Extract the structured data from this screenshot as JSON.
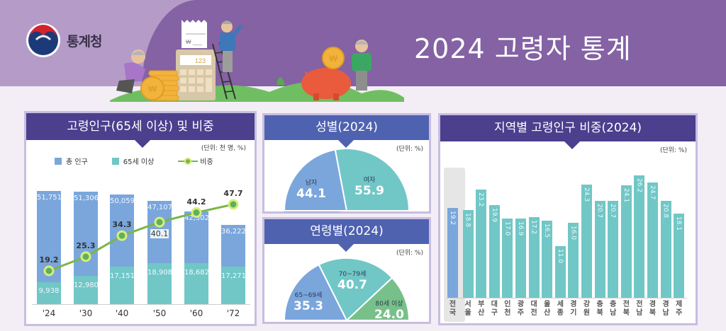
{
  "header": {
    "logo_text": "통계청",
    "title": "2024 고령자 통계",
    "illustration_text": {
      "receipt": "₩",
      "calculator": "123",
      "coin": "₩"
    }
  },
  "colors": {
    "banner_light": "#b59cc8",
    "banner_dark": "#8462a3",
    "panel_header_purple": "#4b3f8e",
    "panel_header_blue": "#4f62b0",
    "total_population": "#7aa6dc",
    "age65plus": "#70c7c6",
    "ratio_line": "#7ab648",
    "age80plus": "#78c08a",
    "national": "#7aa6dc"
  },
  "panels": {
    "population": {
      "title": "고령인구(65세 이상) 및 비중",
      "unit": "(단위: 천 명, %)",
      "legend": [
        "총 인구",
        "65세 이상",
        "비중"
      ]
    },
    "gender": {
      "title": "성별(2024)",
      "unit": "(단위: %)",
      "slices": [
        {
          "label": "남자",
          "value": "44.1"
        },
        {
          "label": "여자",
          "value": "55.9"
        }
      ]
    },
    "age": {
      "title": "연령별(2024)",
      "unit": "(단위: %)",
      "slices": [
        {
          "label": "65~69세",
          "value": "35.3"
        },
        {
          "label": "70~79세",
          "value": "40.7"
        },
        {
          "label": "80세 이상",
          "value": "24.0"
        }
      ]
    },
    "region": {
      "title": "지역별 고령인구 비중(2024)",
      "unit": "(단위: %)"
    }
  },
  "chart_data": [
    {
      "type": "bar",
      "title": "고령인구(65세 이상) 및 비중",
      "unit": "천 명, %",
      "categories": [
        "'24",
        "'30",
        "'40",
        "'50",
        "'60",
        "'72"
      ],
      "series": [
        {
          "name": "총 인구",
          "type": "bar",
          "values": [
            51751,
            51306,
            50059,
            47107,
            42302,
            36222
          ],
          "labels": [
            "51,751",
            "51,306",
            "50,059",
            "47,107",
            "42,302",
            "36,222"
          ]
        },
        {
          "name": "65세 이상",
          "type": "bar",
          "values": [
            9938,
            12980,
            17151,
            18908,
            18682,
            17271
          ],
          "labels": [
            "9,938",
            "12,980",
            "17,151",
            "18,908",
            "18,682",
            "17,271"
          ]
        },
        {
          "name": "비중",
          "type": "line",
          "values": [
            19.2,
            25.3,
            34.3,
            40.1,
            44.2,
            47.7
          ],
          "labels": [
            "19.2",
            "25.3",
            "34.3",
            "40.1",
            "44.2",
            "47.7"
          ]
        }
      ],
      "legend_position": "top",
      "grid": false
    },
    {
      "type": "pie",
      "title": "성별(2024)",
      "unit": "%",
      "categories": [
        "남자",
        "여자"
      ],
      "values": [
        44.1,
        55.9
      ],
      "shape": "half-donut"
    },
    {
      "type": "pie",
      "title": "연령별(2024)",
      "unit": "%",
      "categories": [
        "65~69세",
        "70~79세",
        "80세 이상"
      ],
      "values": [
        35.3,
        40.7,
        24.0
      ],
      "shape": "half-donut"
    },
    {
      "type": "bar",
      "title": "지역별 고령인구 비중(2024)",
      "unit": "%",
      "categories": [
        "전국",
        "서울",
        "부산",
        "대구",
        "인천",
        "광주",
        "대전",
        "울산",
        "세종",
        "경기",
        "강원",
        "충북",
        "충남",
        "전북",
        "전남",
        "경북",
        "경남",
        "제주"
      ],
      "values": [
        19.2,
        18.8,
        23.2,
        19.9,
        17.0,
        16.9,
        17.2,
        16.5,
        11.0,
        16.0,
        24.3,
        20.7,
        20.7,
        24.1,
        26.2,
        24.7,
        20.8,
        18.1
      ],
      "labels": [
        "19.2",
        "18.8",
        "23.2",
        "19.9",
        "17.0",
        "16.9",
        "17.2",
        "16.5",
        "11.0",
        "16.0",
        "24.3",
        "20.7",
        "20.7",
        "24.1",
        "26.2",
        "24.7",
        "20.8",
        "18.1"
      ],
      "highlight": "전국",
      "grid": false
    }
  ]
}
